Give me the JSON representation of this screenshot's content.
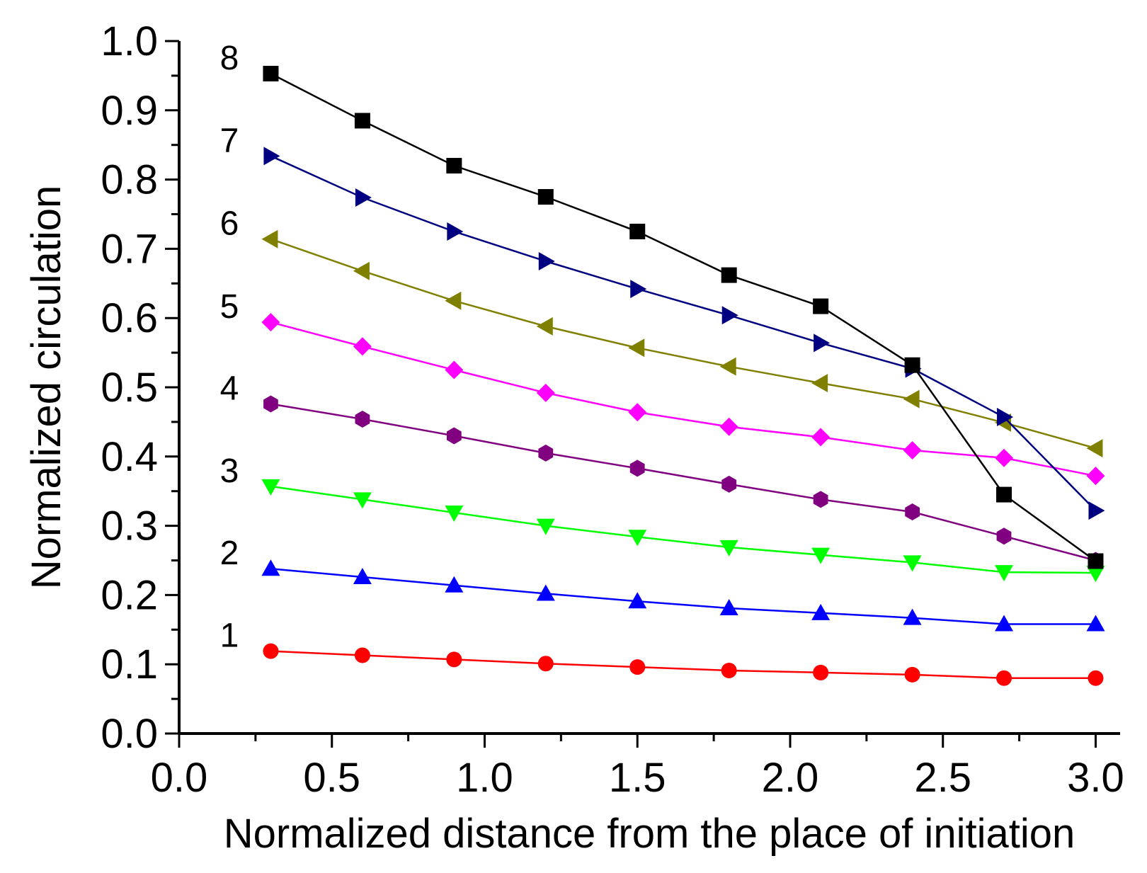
{
  "chart_data": {
    "type": "line",
    "title": "",
    "xlabel": "Normalized distance from the place of initiation",
    "ylabel": "Normalized circulation",
    "xlim": [
      0.0,
      3.08
    ],
    "ylim": [
      0.0,
      1.0
    ],
    "xticks": [
      "0.0",
      "0.5",
      "1.0",
      "1.5",
      "2.0",
      "2.5",
      "3.0"
    ],
    "yticks": [
      "0.0",
      "0.1",
      "0.2",
      "0.3",
      "0.4",
      "0.5",
      "0.6",
      "0.7",
      "0.8",
      "0.9",
      "1.0"
    ],
    "grid": false,
    "x": [
      0.3,
      0.6,
      0.9,
      1.2,
      1.5,
      1.8,
      2.1,
      2.4,
      2.7,
      3.0
    ],
    "series": [
      {
        "name": "1",
        "color": "#ff0000",
        "marker": "circle",
        "values": [
          0.119,
          0.113,
          0.107,
          0.101,
          0.096,
          0.091,
          0.088,
          0.085,
          0.08,
          0.08
        ]
      },
      {
        "name": "2",
        "color": "#0000ff",
        "marker": "triangle-up",
        "values": [
          0.238,
          0.226,
          0.214,
          0.202,
          0.191,
          0.181,
          0.174,
          0.167,
          0.158,
          0.158
        ]
      },
      {
        "name": "3",
        "color": "#00ff00",
        "marker": "triangle-down",
        "values": [
          0.357,
          0.338,
          0.319,
          0.3,
          0.284,
          0.269,
          0.258,
          0.247,
          0.233,
          0.232
        ]
      },
      {
        "name": "4",
        "color": "#800080",
        "marker": "hexagon",
        "values": [
          0.476,
          0.454,
          0.43,
          0.405,
          0.383,
          0.36,
          0.338,
          0.32,
          0.285,
          0.25
        ]
      },
      {
        "name": "5",
        "color": "#ff00ff",
        "marker": "diamond",
        "values": [
          0.594,
          0.559,
          0.525,
          0.492,
          0.464,
          0.443,
          0.428,
          0.409,
          0.398,
          0.372
        ]
      },
      {
        "name": "6",
        "color": "#808000",
        "marker": "triangle-left",
        "values": [
          0.714,
          0.668,
          0.625,
          0.588,
          0.557,
          0.53,
          0.506,
          0.483,
          0.449,
          0.412
        ]
      },
      {
        "name": "7",
        "color": "#000080",
        "marker": "triangle-right",
        "values": [
          0.834,
          0.774,
          0.725,
          0.682,
          0.642,
          0.604,
          0.564,
          0.527,
          0.457,
          0.322
        ]
      },
      {
        "name": "8",
        "color": "#000000",
        "marker": "square",
        "values": [
          0.953,
          0.885,
          0.82,
          0.775,
          0.725,
          0.662,
          0.617,
          0.532,
          0.345,
          0.249
        ]
      }
    ]
  }
}
